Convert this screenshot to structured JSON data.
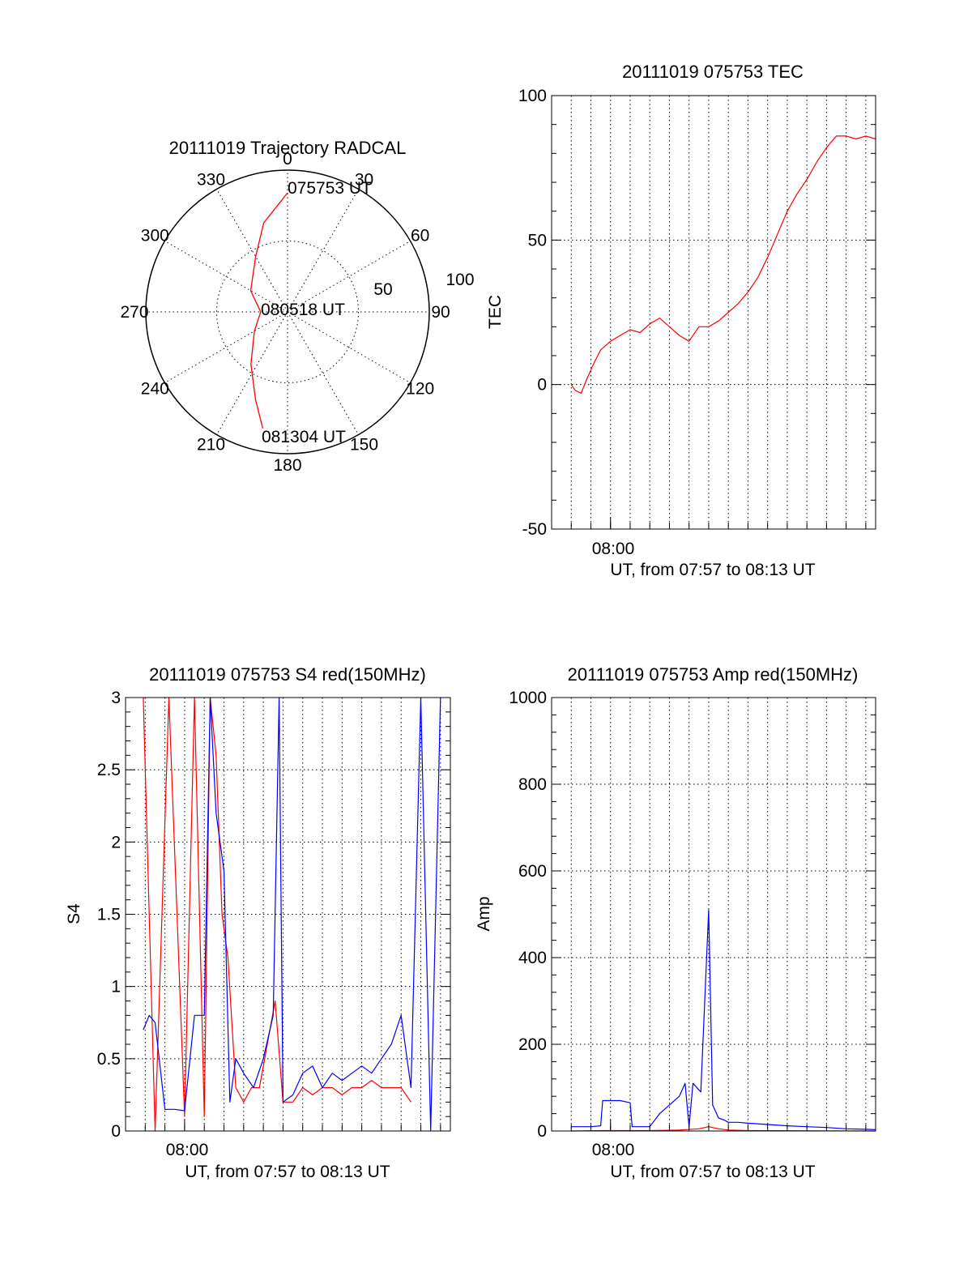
{
  "chart_data": [
    {
      "type": "polar",
      "title": "20111019 Trajectory RADCAL",
      "angle_labels": [
        "0",
        "30",
        "60",
        "90",
        "120",
        "150",
        "180",
        "210",
        "240",
        "270",
        "300",
        "330"
      ],
      "radius_labels": [
        "50",
        "100"
      ],
      "rlim": [
        0,
        100
      ],
      "annotations": [
        "075753 UT",
        "080518 UT",
        "081304 UT"
      ],
      "series": [
        {
          "color": "#ff0000",
          "points": [
            {
              "az": 0,
              "r": 84
            },
            {
              "az": 345,
              "r": 65
            },
            {
              "az": 330,
              "r": 45
            },
            {
              "az": 300,
              "r": 30
            },
            {
              "az": 270,
              "r": 19
            },
            {
              "az": 240,
              "r": 27
            },
            {
              "az": 215,
              "r": 45
            },
            {
              "az": 200,
              "r": 66
            },
            {
              "az": 192,
              "r": 84
            }
          ]
        }
      ]
    },
    {
      "type": "line",
      "title": "20111019 075753 TEC",
      "ylabel": "TEC",
      "xlabel": "UT, from 07:57 to 08:13 UT",
      "x_tick_label": "08:00",
      "xlim": [
        0,
        16.5
      ],
      "ylim": [
        -50,
        100
      ],
      "yticks": [
        "-50",
        "0",
        "50",
        "100"
      ],
      "series": [
        {
          "color": "#ff0000",
          "x": [
            1.0,
            1.2,
            1.5,
            1.8,
            2.2,
            2.5,
            3.0,
            3.5,
            4.0,
            4.5,
            5.0,
            5.5,
            6.0,
            6.5,
            7.0,
            7.5,
            8.0,
            8.5,
            9.0,
            9.5,
            10.0,
            10.5,
            11.0,
            11.5,
            12.0,
            12.5,
            13.0,
            13.5,
            14.0,
            14.5,
            15.0,
            15.5,
            16.0,
            16.5
          ],
          "y": [
            0,
            -2,
            -3,
            2,
            8,
            12,
            15,
            17,
            19,
            18,
            21,
            23,
            20,
            17,
            15,
            20,
            20,
            22,
            25,
            28,
            32,
            37,
            44,
            52,
            60,
            66,
            71,
            77,
            82,
            86,
            86,
            85,
            86,
            85
          ]
        }
      ]
    },
    {
      "type": "line",
      "title": "20111019 075753 S4 red(150MHz)",
      "ylabel": "S4",
      "xlabel": "UT, from 07:57 to 08:13 UT",
      "x_tick_label": "08:00",
      "xlim": [
        0,
        16.5
      ],
      "ylim": [
        0,
        3
      ],
      "yticks": [
        "0",
        "0.5",
        "1",
        "1.5",
        "2",
        "2.5",
        "3"
      ],
      "series": [
        {
          "color": "#ff0000",
          "x": [
            0.9,
            1.5,
            2.2,
            3.0,
            3.5,
            4.0,
            4.3,
            4.6,
            4.9,
            5.2,
            5.6,
            6.0,
            6.4,
            6.8,
            7.2,
            7.6,
            8.0,
            8.5,
            9.0,
            9.5,
            10.0,
            10.5,
            11.0,
            11.5,
            12.0,
            12.5,
            13.0,
            13.5,
            14.0,
            14.5
          ],
          "y": [
            3.0,
            0.0,
            3.0,
            0.1,
            3.0,
            0.1,
            3.0,
            2.6,
            1.5,
            1.2,
            0.3,
            0.2,
            0.3,
            0.3,
            0.6,
            0.9,
            0.2,
            0.2,
            0.3,
            0.25,
            0.3,
            0.3,
            0.25,
            0.3,
            0.3,
            0.35,
            0.3,
            0.3,
            0.3,
            0.2
          ]
        },
        {
          "color": "#0000ff",
          "x": [
            0.9,
            1.2,
            1.5,
            2.0,
            2.5,
            3.0,
            3.5,
            4.0,
            4.3,
            4.6,
            5.0,
            5.3,
            5.6,
            6.0,
            6.5,
            7.0,
            7.5,
            7.8,
            8.0,
            8.5,
            9.0,
            9.5,
            10.0,
            10.5,
            11.0,
            11.5,
            12.0,
            12.5,
            13.0,
            13.5,
            14.0,
            14.5,
            15.0,
            15.5,
            16.0
          ],
          "y": [
            0.7,
            0.8,
            0.75,
            0.15,
            0.15,
            0.14,
            0.8,
            0.8,
            3.0,
            2.2,
            1.8,
            0.2,
            0.5,
            0.4,
            0.3,
            0.5,
            0.8,
            3.0,
            0.2,
            0.25,
            0.4,
            0.45,
            0.3,
            0.4,
            0.35,
            0.4,
            0.45,
            0.4,
            0.5,
            0.6,
            0.8,
            0.3,
            3.0,
            0.0,
            3.0
          ]
        }
      ]
    },
    {
      "type": "line",
      "title": "20111019 075753 Amp red(150MHz)",
      "ylabel": "Amp",
      "xlabel": "UT, from 07:57 to 08:13 UT",
      "x_tick_label": "08:00",
      "xlim": [
        0,
        16.5
      ],
      "ylim": [
        0,
        1000
      ],
      "yticks": [
        "0",
        "200",
        "400",
        "600",
        "800",
        "1000"
      ],
      "series": [
        {
          "color": "#0000ff",
          "x": [
            1.0,
            2.0,
            2.5,
            2.6,
            3.5,
            4.0,
            4.1,
            5.0,
            5.5,
            6.0,
            6.5,
            6.8,
            7.0,
            7.2,
            7.6,
            8.0,
            8.2,
            8.5,
            8.8,
            9.0,
            9.2,
            9.5,
            10.0,
            11.0,
            12.0,
            13.0,
            14.0,
            15.0,
            16.0,
            16.5
          ],
          "y": [
            10,
            10,
            12,
            70,
            70,
            65,
            10,
            10,
            40,
            60,
            80,
            110,
            10,
            110,
            90,
            510,
            60,
            30,
            25,
            20,
            20,
            20,
            18,
            15,
            12,
            10,
            8,
            5,
            4,
            3
          ]
        },
        {
          "color": "#ff0000",
          "x": [
            1.0,
            2.6,
            4.0,
            5.0,
            6.5,
            7.5,
            8.0,
            8.5,
            9.0,
            10.0,
            16.5
          ],
          "y": [
            0,
            1,
            1,
            1,
            2,
            5,
            10,
            5,
            2,
            1,
            0
          ]
        }
      ]
    }
  ]
}
